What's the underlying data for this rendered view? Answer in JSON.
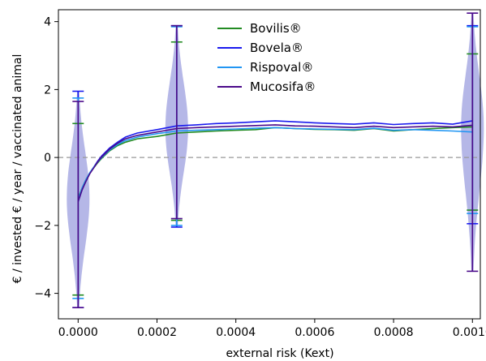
{
  "chart_data": {
    "type": "line",
    "title": "",
    "xlabel": "external risk (Kext)",
    "ylabel": "€ / invested € / year / vaccinated animal",
    "xlim": [
      -5e-05,
      0.00102
    ],
    "ylim": [
      -4.75,
      4.35
    ],
    "x_ticks": [
      0,
      0.0002,
      0.0004,
      0.0006,
      0.0008,
      0.001
    ],
    "x_tick_labels": [
      "0.0000",
      "0.0002",
      "0.0004",
      "0.0006",
      "0.0008",
      "0.0010"
    ],
    "y_ticks": [
      -4,
      -2,
      0,
      2,
      4
    ],
    "y_tick_labels": [
      "−4",
      "−2",
      "0",
      "2",
      "4"
    ],
    "grid": false,
    "legend_position": "top-center",
    "reference_line": {
      "y": 0,
      "style": "dashed",
      "color": "#999999"
    },
    "series": [
      {
        "name": "Bovilis®",
        "color": "#228b22",
        "x": [
          0,
          1e-05,
          2e-05,
          3e-05,
          4e-05,
          5e-05,
          6e-05,
          8e-05,
          0.0001,
          0.00012,
          0.00015,
          0.0002,
          0.00025,
          0.0003,
          0.00035,
          0.0004,
          0.00045,
          0.0005,
          0.00055,
          0.0006,
          0.00065,
          0.0007,
          0.00075,
          0.0008,
          0.00085,
          0.0009,
          0.00095,
          0.001
        ],
        "values": [
          -1.2,
          -0.9,
          -0.65,
          -0.45,
          -0.3,
          -0.15,
          -0.02,
          0.2,
          0.35,
          0.45,
          0.55,
          0.62,
          0.72,
          0.75,
          0.78,
          0.8,
          0.82,
          0.88,
          0.85,
          0.83,
          0.82,
          0.8,
          0.85,
          0.78,
          0.82,
          0.85,
          0.88,
          0.9
        ]
      },
      {
        "name": "Bovela®",
        "color": "#1a1aee",
        "x": [
          0,
          1e-05,
          2e-05,
          3e-05,
          4e-05,
          5e-05,
          6e-05,
          8e-05,
          0.0001,
          0.00012,
          0.00015,
          0.0002,
          0.00025,
          0.0003,
          0.00035,
          0.0004,
          0.00045,
          0.0005,
          0.00055,
          0.0006,
          0.00065,
          0.0007,
          0.00075,
          0.0008,
          0.00085,
          0.0009,
          0.00095,
          0.001
        ],
        "values": [
          -1.3,
          -0.95,
          -0.68,
          -0.45,
          -0.28,
          -0.1,
          0.05,
          0.28,
          0.45,
          0.6,
          0.72,
          0.82,
          0.93,
          0.96,
          1.0,
          1.02,
          1.05,
          1.08,
          1.05,
          1.02,
          1.0,
          0.98,
          1.02,
          0.97,
          1.0,
          1.02,
          0.98,
          1.08
        ]
      },
      {
        "name": "Rispoval®",
        "color": "#2196f3",
        "x": [
          0,
          1e-05,
          2e-05,
          3e-05,
          4e-05,
          5e-05,
          6e-05,
          8e-05,
          0.0001,
          0.00012,
          0.00015,
          0.0002,
          0.00025,
          0.0003,
          0.00035,
          0.0004,
          0.00045,
          0.0005,
          0.00055,
          0.0006,
          0.00065,
          0.0007,
          0.00075,
          0.0008,
          0.00085,
          0.0009,
          0.00095,
          0.001
        ],
        "values": [
          -1.25,
          -0.9,
          -0.65,
          -0.44,
          -0.28,
          -0.13,
          0.0,
          0.22,
          0.38,
          0.5,
          0.6,
          0.7,
          0.78,
          0.8,
          0.82,
          0.84,
          0.86,
          0.88,
          0.85,
          0.84,
          0.83,
          0.82,
          0.86,
          0.8,
          0.82,
          0.8,
          0.78,
          0.75
        ]
      },
      {
        "name": "Mucosifa®",
        "color": "#4b0a8a",
        "x": [
          0,
          1e-05,
          2e-05,
          3e-05,
          4e-05,
          5e-05,
          6e-05,
          8e-05,
          0.0001,
          0.00012,
          0.00015,
          0.0002,
          0.00025,
          0.0003,
          0.00035,
          0.0004,
          0.00045,
          0.0005,
          0.00055,
          0.0006,
          0.00065,
          0.0007,
          0.00075,
          0.0008,
          0.00085,
          0.0009,
          0.00095,
          0.001
        ],
        "values": [
          -1.3,
          -0.95,
          -0.7,
          -0.47,
          -0.3,
          -0.12,
          0.02,
          0.25,
          0.42,
          0.55,
          0.65,
          0.75,
          0.85,
          0.88,
          0.9,
          0.92,
          0.94,
          0.96,
          0.93,
          0.92,
          0.9,
          0.88,
          0.92,
          0.88,
          0.9,
          0.92,
          0.9,
          0.95
        ]
      }
    ],
    "violins": [
      {
        "x": 0,
        "median": -1.2,
        "errorbars": [
          {
            "color": "#228b22",
            "min": -4.05,
            "max": 1.0
          },
          {
            "color": "#1a1aee",
            "min": -4.42,
            "max": 1.95
          },
          {
            "color": "#2196f3",
            "min": -4.15,
            "max": 1.75
          },
          {
            "color": "#4b0a8a",
            "min": -4.42,
            "max": 1.65
          }
        ]
      },
      {
        "x": 0.00025,
        "median": 0.85,
        "errorbars": [
          {
            "color": "#228b22",
            "min": -1.85,
            "max": 3.4
          },
          {
            "color": "#1a1aee",
            "min": -2.05,
            "max": 3.88
          },
          {
            "color": "#2196f3",
            "min": -2.0,
            "max": 3.85
          },
          {
            "color": "#4b0a8a",
            "min": -1.8,
            "max": 3.88
          }
        ]
      },
      {
        "x": 0.001,
        "median": 0.9,
        "errorbars": [
          {
            "color": "#228b22",
            "min": -1.55,
            "max": 3.05
          },
          {
            "color": "#1a1aee",
            "min": -1.95,
            "max": 3.88
          },
          {
            "color": "#2196f3",
            "min": -1.65,
            "max": 3.85
          },
          {
            "color": "#4b0a8a",
            "min": -3.35,
            "max": 4.25
          }
        ]
      }
    ]
  }
}
